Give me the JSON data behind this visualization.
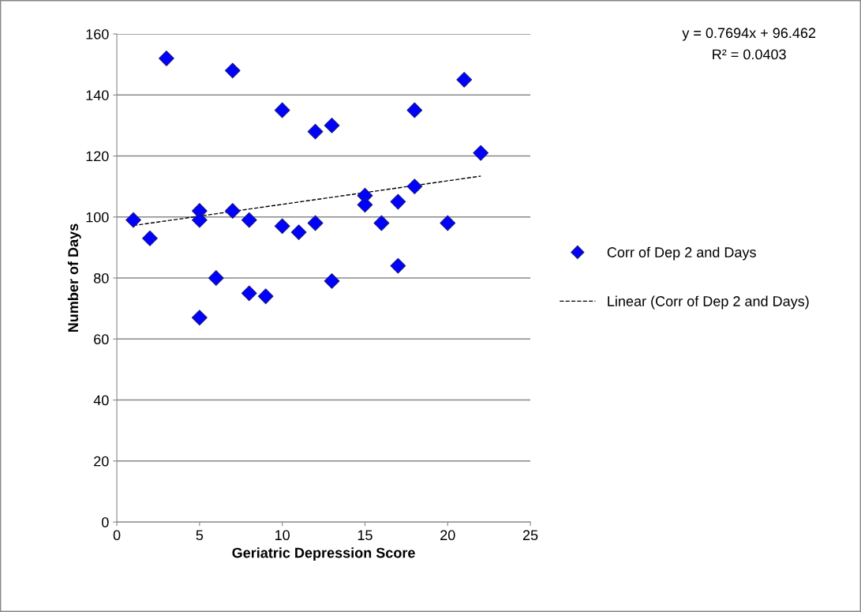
{
  "chart_data": {
    "type": "scatter",
    "xlabel": "Geriatric Depression Score",
    "ylabel": "Number of Days",
    "series": [
      {
        "name": "Corr of Dep 2 and Days",
        "color": "#0000ff",
        "marker": "diamond",
        "x": [
          1,
          2,
          3,
          5,
          5,
          5,
          6,
          7,
          7,
          8,
          8,
          9,
          10,
          10,
          11,
          12,
          12,
          13,
          13,
          15,
          15,
          16,
          17,
          17,
          18,
          18,
          20,
          21,
          22
        ],
        "values": [
          99,
          93,
          152,
          102,
          99,
          67,
          80,
          148,
          102,
          99,
          75,
          74,
          135,
          97,
          95,
          128,
          98,
          130,
          79,
          107,
          104,
          98,
          105,
          84,
          135,
          110,
          98,
          145,
          121
        ]
      },
      {
        "name": "Linear (Corr of Dep 2 and Days)",
        "type": "line",
        "color": "#000000",
        "line_style": "dashed",
        "marker": "none",
        "x": [
          1,
          22
        ],
        "values": [
          97.2,
          113.4
        ]
      }
    ],
    "xlim": [
      0,
      25
    ],
    "xticks": [
      0,
      5,
      10,
      15,
      20,
      25
    ],
    "ylim": [
      0,
      160
    ],
    "yticks": [
      0,
      20,
      40,
      60,
      80,
      100,
      120,
      140,
      160
    ],
    "grid": "y",
    "legend": "right",
    "annotations": [
      "y = 0.7694x + 96.462",
      "R² = 0.0403"
    ]
  }
}
